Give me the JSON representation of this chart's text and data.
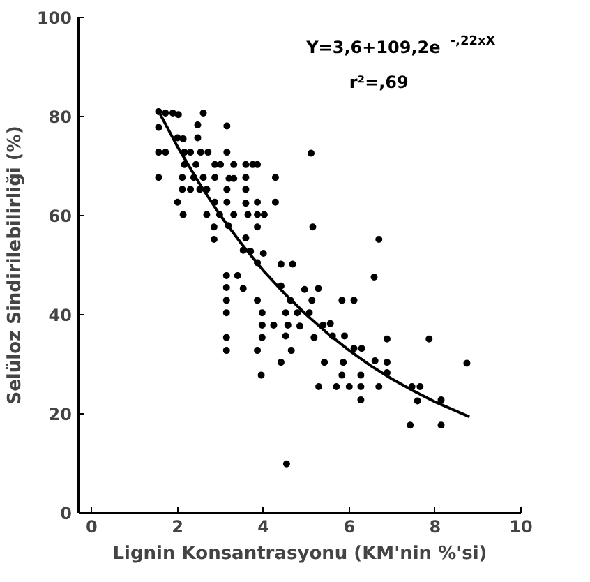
{
  "chart_data": {
    "type": "scatter",
    "xlabel": "Lignin Konsantrasyonu (KM'nin %'si)",
    "ylabel": "Selüloz Sindirilebilirliği (%)",
    "annotations": [
      "Y=3,6+109,2e$^{-,22xX}$",
      "r²=,69"
    ],
    "xlim": [
      -0.3,
      10
    ],
    "ylim": [
      0,
      100
    ],
    "xticks": [
      0,
      2,
      4,
      6,
      8,
      10
    ],
    "yticks": [
      0,
      20,
      40,
      60,
      80,
      100
    ],
    "grid": false,
    "marker": "circle",
    "series": [
      {
        "color": "#000000",
        "x": [
          1.56,
          1.72,
          1.89,
          2.02,
          1.56,
          1.56,
          1.72,
          1.56,
          2.0,
          2.13,
          2.6,
          2.47,
          2.47,
          3.15,
          2.16,
          2.3,
          2.54,
          2.71,
          3.15,
          2.16,
          2.43,
          2.87,
          3.0,
          3.31,
          3.59,
          3.75,
          3.86,
          2.11,
          2.38,
          2.6,
          2.87,
          3.2,
          3.31,
          3.59,
          4.28,
          2.11,
          2.3,
          2.52,
          2.68,
          3.15,
          3.59,
          2.0,
          2.87,
          3.15,
          3.59,
          3.86,
          4.28,
          2.13,
          2.68,
          2.98,
          3.31,
          3.64,
          3.86,
          4.02,
          2.85,
          3.18,
          3.86,
          5.15,
          2.85,
          3.59,
          6.69,
          3.53,
          3.7,
          4.0,
          3.86,
          4.41,
          4.68,
          3.14,
          3.4,
          6.58,
          3.14,
          3.53,
          4.41,
          4.96,
          5.28,
          3.14,
          3.86,
          4.63,
          5.13,
          5.83,
          6.11,
          3.14,
          3.97,
          4.52,
          4.79,
          5.07,
          3.97,
          4.24,
          4.57,
          4.85,
          5.39,
          5.56,
          3.14,
          3.97,
          4.52,
          5.18,
          5.61,
          5.89,
          6.88,
          7.86,
          3.14,
          3.86,
          4.65,
          6.11,
          6.29,
          4.41,
          5.42,
          5.86,
          6.6,
          6.88,
          8.74,
          3.95,
          5.83,
          6.27,
          6.88,
          5.29,
          5.7,
          6.0,
          6.27,
          6.69,
          7.46,
          7.65,
          6.27,
          7.59,
          8.14,
          7.42,
          8.14,
          4.54,
          5.11
        ],
        "values": [
          81,
          80.7,
          80.7,
          80.4,
          77.8,
          72.8,
          72.8,
          67.7,
          75.7,
          75.5,
          80.7,
          78.3,
          75.7,
          78.1,
          72.8,
          72.8,
          72.8,
          72.8,
          72.8,
          70.3,
          70.3,
          70.3,
          70.3,
          70.3,
          70.3,
          70.3,
          70.3,
          67.7,
          67.7,
          67.7,
          67.7,
          67.5,
          67.5,
          67.7,
          67.7,
          65.3,
          65.3,
          65.3,
          65.3,
          65.3,
          65.3,
          62.7,
          62.7,
          62.7,
          62.5,
          62.7,
          62.7,
          60.2,
          60.2,
          60.2,
          60.2,
          60.2,
          60.2,
          60.2,
          57.7,
          58,
          57.7,
          57.7,
          55.2,
          55.5,
          55.2,
          53,
          52.8,
          52.4,
          50.5,
          50.2,
          50.2,
          47.9,
          47.9,
          47.6,
          45.5,
          45.3,
          45.8,
          45.1,
          45.3,
          42.9,
          42.9,
          42.9,
          42.9,
          42.9,
          42.9,
          40.4,
          40.4,
          40.4,
          40.4,
          40.4,
          37.9,
          37.9,
          37.9,
          37.7,
          37.9,
          38.2,
          35.4,
          35.4,
          35.7,
          35.4,
          35.7,
          35.7,
          35.1,
          35.1,
          32.8,
          32.8,
          32.8,
          33.2,
          33.2,
          30.4,
          30.4,
          30.4,
          30.7,
          30.4,
          30.2,
          27.8,
          27.8,
          27.8,
          28.3,
          25.5,
          25.5,
          25.5,
          25.5,
          25.5,
          25.5,
          25.5,
          22.8,
          22.6,
          22.8,
          17.7,
          17.7,
          9.9,
          72.6
        ]
      },
      {
        "type": "line",
        "color": "#000000",
        "marker": "none",
        "x": [
          1.6,
          2,
          2.5,
          3,
          3.5,
          4,
          4.5,
          5,
          5.5,
          6,
          6.5,
          7,
          7.5,
          8,
          8.8
        ],
        "values": [
          80.4,
          73.9,
          66.6,
          60.0,
          54.2,
          48.9,
          44.2,
          40.0,
          36.2,
          32.8,
          29.7,
          27.0,
          24.6,
          22.4,
          19.4
        ]
      }
    ]
  }
}
